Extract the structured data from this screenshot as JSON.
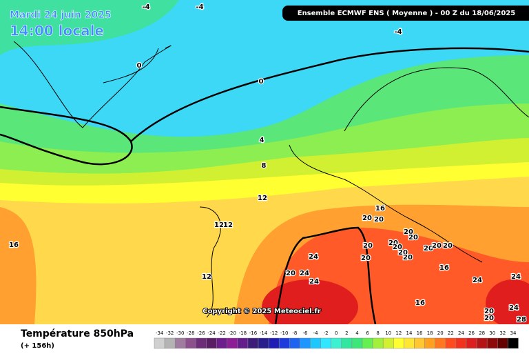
{
  "header": {
    "date": "Mardi 24 juin 2025",
    "time": "14:00 locale",
    "run": "Ensemble ECMWF ENS  ( Moyenne )  -  00 Z du 18/06/2025"
  },
  "copyright": "Copyright © 2025 Meteociel.fr",
  "footer": {
    "title": "Température 850hPa",
    "lead": "(+ 156h)"
  },
  "contour_labels": [
    -4,
    -4,
    -4,
    0,
    0,
    4,
    8,
    12,
    12,
    12,
    12,
    16,
    16,
    20,
    20,
    20,
    20,
    20,
    20,
    20,
    20,
    20,
    20,
    20,
    20,
    20,
    24,
    20,
    24,
    24,
    16,
    24,
    24,
    16,
    20,
    20,
    24,
    28
  ],
  "legend": {
    "values": [
      -34,
      -32,
      -30,
      -28,
      -26,
      -24,
      -22,
      -20,
      -18,
      -16,
      -14,
      -12,
      -10,
      -8,
      -6,
      -4,
      -2,
      0,
      2,
      4,
      6,
      8,
      10,
      12,
      14,
      16,
      18,
      20,
      22,
      24,
      26,
      28,
      30,
      32,
      34
    ],
    "colors": [
      "#d0d0d0",
      "#b4b4b4",
      "#a07ca0",
      "#8c508c",
      "#6e2d78",
      "#5a1e64",
      "#6e1e8c",
      "#8c1e96",
      "#641e8c",
      "#3c1e78",
      "#281e8c",
      "#1e1eb4",
      "#1e3cdc",
      "#1e64f0",
      "#1e96ff",
      "#1ec8ff",
      "#32e6ff",
      "#3cf0d2",
      "#32e6a0",
      "#3ce678",
      "#64f050",
      "#a0f03c",
      "#d2f032",
      "#ffff32",
      "#ffe632",
      "#ffc832",
      "#ffa01e",
      "#ff781e",
      "#ff4b1e",
      "#f0321e",
      "#dc1e1e",
      "#b41414",
      "#8c0a0a",
      "#640000",
      "#000000"
    ]
  }
}
